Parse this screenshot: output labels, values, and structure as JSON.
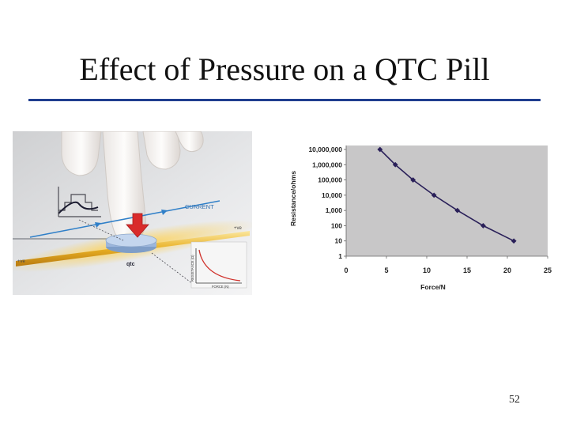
{
  "slide": {
    "title": "Effect of Pressure on a QTC Pill",
    "page_number": "52"
  },
  "illustration": {
    "current_label": "CURRENT",
    "positive_label_left": "+ve",
    "positive_label_right": "+ve",
    "pill_label": "qtc",
    "mini_y_label": "RESISTANCE (Ω)",
    "mini_x_label": "FORCE (N)"
  },
  "colors": {
    "title_rule": "#1f3e8f",
    "plot_background": "#c8c7c8",
    "series_line": "#2a2059",
    "current_arrow": "#2f7fc8",
    "press_arrow": "#d92b2b",
    "electrode": "#e6b020"
  },
  "chart_data": {
    "type": "line",
    "xlabel": "Force/N",
    "ylabel": "Resistance/ohms",
    "xlim": [
      0,
      25
    ],
    "x_ticks": [
      0,
      5,
      10,
      15,
      20,
      25
    ],
    "y_scale": "log",
    "ylim": [
      1,
      10000000
    ],
    "y_tick_values": [
      1,
      10,
      100,
      1000,
      10000,
      100000,
      1000000,
      10000000
    ],
    "y_tick_labels": [
      "1",
      "10",
      "100",
      "1,000",
      "10,000",
      "100,000",
      "1,000,000",
      "10,000,000"
    ],
    "grid": false,
    "legend": "none",
    "series": [
      {
        "x": [
          4.2,
          6.1,
          8.3,
          10.9,
          13.8,
          17.0,
          20.8
        ],
        "y": [
          10000000,
          1000000,
          100000,
          10000,
          1000,
          100,
          10
        ]
      }
    ]
  }
}
